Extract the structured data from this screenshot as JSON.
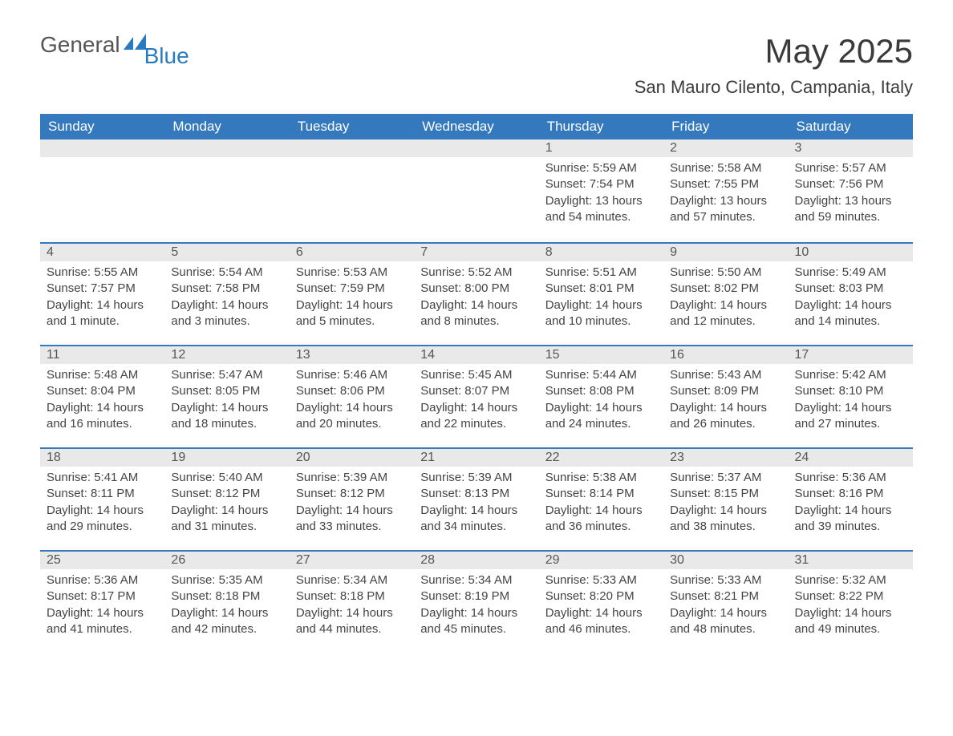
{
  "logo": {
    "word1": "General",
    "word2": "Blue"
  },
  "title": "May 2025",
  "location": "San Mauro Cilento, Campania, Italy",
  "colors": {
    "header_bg": "#3479bd",
    "header_text": "#ffffff",
    "daynum_bg": "#e9e9e9",
    "border": "#3479bd",
    "body_text": "#444444",
    "logo_blue": "#2a7ac0"
  },
  "day_headers": [
    "Sunday",
    "Monday",
    "Tuesday",
    "Wednesday",
    "Thursday",
    "Friday",
    "Saturday"
  ],
  "weeks": [
    [
      null,
      null,
      null,
      null,
      {
        "n": "1",
        "sunrise": "5:59 AM",
        "sunset": "7:54 PM",
        "daylight": "13 hours and 54 minutes."
      },
      {
        "n": "2",
        "sunrise": "5:58 AM",
        "sunset": "7:55 PM",
        "daylight": "13 hours and 57 minutes."
      },
      {
        "n": "3",
        "sunrise": "5:57 AM",
        "sunset": "7:56 PM",
        "daylight": "13 hours and 59 minutes."
      }
    ],
    [
      {
        "n": "4",
        "sunrise": "5:55 AM",
        "sunset": "7:57 PM",
        "daylight": "14 hours and 1 minute."
      },
      {
        "n": "5",
        "sunrise": "5:54 AM",
        "sunset": "7:58 PM",
        "daylight": "14 hours and 3 minutes."
      },
      {
        "n": "6",
        "sunrise": "5:53 AM",
        "sunset": "7:59 PM",
        "daylight": "14 hours and 5 minutes."
      },
      {
        "n": "7",
        "sunrise": "5:52 AM",
        "sunset": "8:00 PM",
        "daylight": "14 hours and 8 minutes."
      },
      {
        "n": "8",
        "sunrise": "5:51 AM",
        "sunset": "8:01 PM",
        "daylight": "14 hours and 10 minutes."
      },
      {
        "n": "9",
        "sunrise": "5:50 AM",
        "sunset": "8:02 PM",
        "daylight": "14 hours and 12 minutes."
      },
      {
        "n": "10",
        "sunrise": "5:49 AM",
        "sunset": "8:03 PM",
        "daylight": "14 hours and 14 minutes."
      }
    ],
    [
      {
        "n": "11",
        "sunrise": "5:48 AM",
        "sunset": "8:04 PM",
        "daylight": "14 hours and 16 minutes."
      },
      {
        "n": "12",
        "sunrise": "5:47 AM",
        "sunset": "8:05 PM",
        "daylight": "14 hours and 18 minutes."
      },
      {
        "n": "13",
        "sunrise": "5:46 AM",
        "sunset": "8:06 PM",
        "daylight": "14 hours and 20 minutes."
      },
      {
        "n": "14",
        "sunrise": "5:45 AM",
        "sunset": "8:07 PM",
        "daylight": "14 hours and 22 minutes."
      },
      {
        "n": "15",
        "sunrise": "5:44 AM",
        "sunset": "8:08 PM",
        "daylight": "14 hours and 24 minutes."
      },
      {
        "n": "16",
        "sunrise": "5:43 AM",
        "sunset": "8:09 PM",
        "daylight": "14 hours and 26 minutes."
      },
      {
        "n": "17",
        "sunrise": "5:42 AM",
        "sunset": "8:10 PM",
        "daylight": "14 hours and 27 minutes."
      }
    ],
    [
      {
        "n": "18",
        "sunrise": "5:41 AM",
        "sunset": "8:11 PM",
        "daylight": "14 hours and 29 minutes."
      },
      {
        "n": "19",
        "sunrise": "5:40 AM",
        "sunset": "8:12 PM",
        "daylight": "14 hours and 31 minutes."
      },
      {
        "n": "20",
        "sunrise": "5:39 AM",
        "sunset": "8:12 PM",
        "daylight": "14 hours and 33 minutes."
      },
      {
        "n": "21",
        "sunrise": "5:39 AM",
        "sunset": "8:13 PM",
        "daylight": "14 hours and 34 minutes."
      },
      {
        "n": "22",
        "sunrise": "5:38 AM",
        "sunset": "8:14 PM",
        "daylight": "14 hours and 36 minutes."
      },
      {
        "n": "23",
        "sunrise": "5:37 AM",
        "sunset": "8:15 PM",
        "daylight": "14 hours and 38 minutes."
      },
      {
        "n": "24",
        "sunrise": "5:36 AM",
        "sunset": "8:16 PM",
        "daylight": "14 hours and 39 minutes."
      }
    ],
    [
      {
        "n": "25",
        "sunrise": "5:36 AM",
        "sunset": "8:17 PM",
        "daylight": "14 hours and 41 minutes."
      },
      {
        "n": "26",
        "sunrise": "5:35 AM",
        "sunset": "8:18 PM",
        "daylight": "14 hours and 42 minutes."
      },
      {
        "n": "27",
        "sunrise": "5:34 AM",
        "sunset": "8:18 PM",
        "daylight": "14 hours and 44 minutes."
      },
      {
        "n": "28",
        "sunrise": "5:34 AM",
        "sunset": "8:19 PM",
        "daylight": "14 hours and 45 minutes."
      },
      {
        "n": "29",
        "sunrise": "5:33 AM",
        "sunset": "8:20 PM",
        "daylight": "14 hours and 46 minutes."
      },
      {
        "n": "30",
        "sunrise": "5:33 AM",
        "sunset": "8:21 PM",
        "daylight": "14 hours and 48 minutes."
      },
      {
        "n": "31",
        "sunrise": "5:32 AM",
        "sunset": "8:22 PM",
        "daylight": "14 hours and 49 minutes."
      }
    ]
  ],
  "labels": {
    "sunrise": "Sunrise:",
    "sunset": "Sunset:",
    "daylight": "Daylight:"
  }
}
